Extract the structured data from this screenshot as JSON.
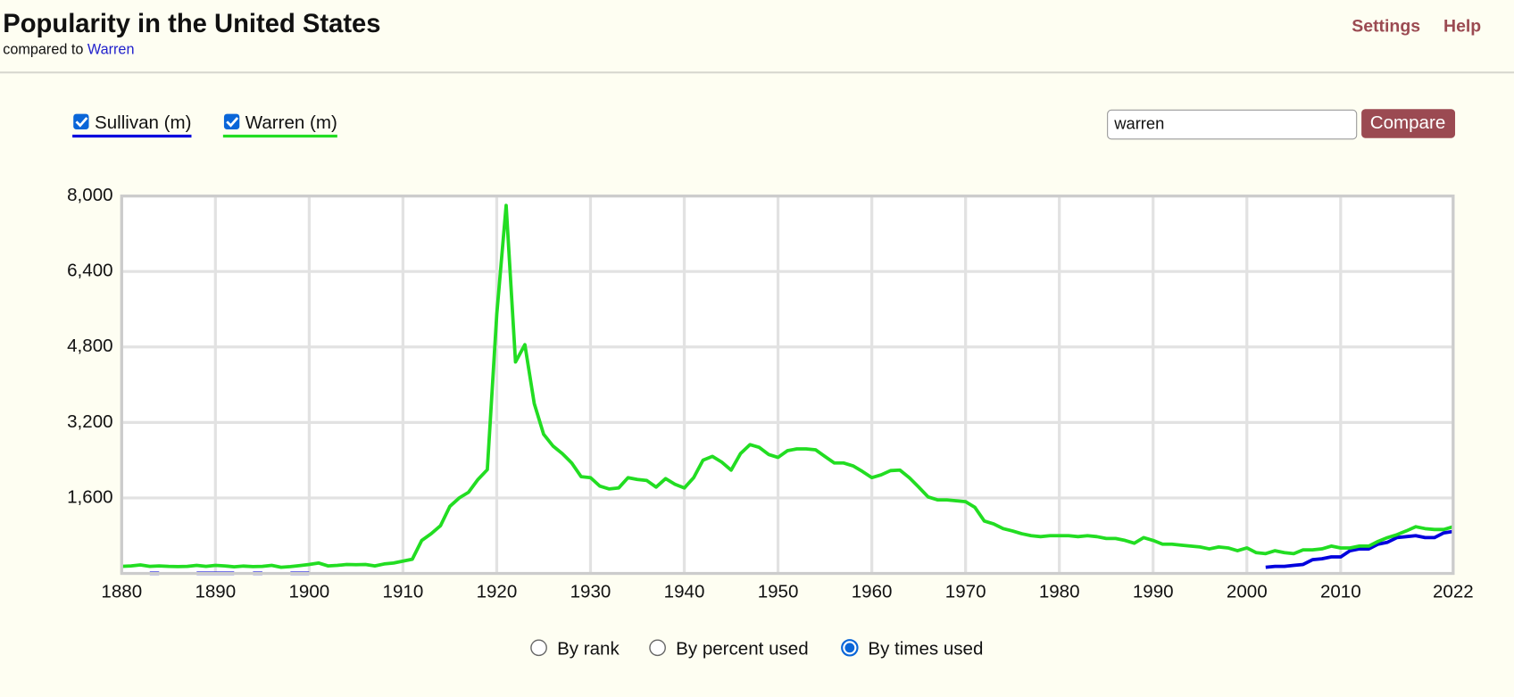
{
  "header": {
    "title": "Popularity in the United States",
    "subtitle_prefix": "compared to",
    "subtitle_link": "Warren",
    "nav": [
      "Settings",
      "Help"
    ]
  },
  "search": {
    "value": "warren",
    "button": "Compare"
  },
  "view_options": {
    "labels": [
      "By rank",
      "By percent used",
      "By times used"
    ],
    "selected": 2
  },
  "chart_data": {
    "type": "line",
    "x": [
      1880,
      1881,
      1882,
      1883,
      1884,
      1885,
      1886,
      1887,
      1888,
      1889,
      1890,
      1891,
      1892,
      1893,
      1894,
      1895,
      1896,
      1897,
      1898,
      1899,
      1900,
      1901,
      1902,
      1903,
      1904,
      1905,
      1906,
      1907,
      1908,
      1909,
      1910,
      1911,
      1912,
      1913,
      1914,
      1915,
      1916,
      1917,
      1918,
      1919,
      1920,
      1921,
      1922,
      1923,
      1924,
      1925,
      1926,
      1927,
      1928,
      1929,
      1930,
      1931,
      1932,
      1933,
      1934,
      1935,
      1936,
      1937,
      1938,
      1939,
      1940,
      1941,
      1942,
      1943,
      1944,
      1945,
      1946,
      1947,
      1948,
      1949,
      1950,
      1951,
      1952,
      1953,
      1954,
      1955,
      1956,
      1957,
      1958,
      1959,
      1960,
      1961,
      1962,
      1963,
      1964,
      1965,
      1966,
      1967,
      1968,
      1969,
      1970,
      1971,
      1972,
      1973,
      1974,
      1975,
      1976,
      1977,
      1978,
      1979,
      1980,
      1981,
      1982,
      1983,
      1984,
      1985,
      1986,
      1987,
      1988,
      1989,
      1990,
      1991,
      1992,
      1993,
      1994,
      1995,
      1996,
      1997,
      1998,
      1999,
      2000,
      2001,
      2002,
      2003,
      2004,
      2005,
      2006,
      2007,
      2008,
      2009,
      2010,
      2011,
      2012,
      2013,
      2014,
      2015,
      2016,
      2017,
      2018,
      2019,
      2020,
      2021,
      2022
    ],
    "series": [
      {
        "name": "Sullivan (m)",
        "color": "#0000dd",
        "values": [
          null,
          null,
          null,
          5,
          5,
          null,
          null,
          null,
          5,
          5,
          5,
          5,
          5,
          null,
          5,
          5,
          null,
          null,
          5,
          5,
          5,
          null,
          null,
          null,
          null,
          null,
          null,
          null,
          null,
          null,
          null,
          null,
          null,
          null,
          null,
          null,
          null,
          null,
          null,
          null,
          null,
          null,
          null,
          null,
          null,
          null,
          null,
          null,
          null,
          null,
          null,
          null,
          null,
          null,
          null,
          null,
          null,
          null,
          null,
          null,
          null,
          null,
          null,
          null,
          null,
          null,
          null,
          null,
          null,
          null,
          null,
          null,
          null,
          null,
          null,
          null,
          null,
          null,
          null,
          null,
          null,
          null,
          null,
          null,
          null,
          null,
          null,
          null,
          null,
          null,
          null,
          null,
          null,
          null,
          null,
          null,
          null,
          null,
          null,
          null,
          null,
          null,
          null,
          null,
          null,
          null,
          null,
          null,
          null,
          null,
          null,
          null,
          null,
          null,
          null,
          null,
          null,
          null,
          null,
          null,
          null,
          null,
          130,
          150,
          150,
          170,
          190,
          290,
          310,
          350,
          350,
          480,
          520,
          520,
          620,
          660,
          760,
          780,
          800,
          760,
          760,
          860,
          890
        ]
      },
      {
        "name": "Warren (m)",
        "color": "#22dd22",
        "values": [
          150,
          160,
          180,
          150,
          160,
          150,
          145,
          150,
          170,
          150,
          170,
          160,
          140,
          155,
          145,
          150,
          170,
          130,
          145,
          165,
          190,
          220,
          160,
          170,
          190,
          185,
          190,
          160,
          200,
          220,
          260,
          300,
          700,
          840,
          1010,
          1420,
          1600,
          1720,
          1990,
          2200,
          5500,
          7800,
          4480,
          4850,
          3600,
          2950,
          2700,
          2540,
          2340,
          2050,
          2030,
          1850,
          1790,
          1810,
          2030,
          1990,
          1970,
          1830,
          2010,
          1890,
          1810,
          2030,
          2400,
          2480,
          2360,
          2190,
          2540,
          2730,
          2670,
          2520,
          2460,
          2600,
          2640,
          2640,
          2620,
          2480,
          2340,
          2340,
          2280,
          2160,
          2030,
          2090,
          2180,
          2190,
          2030,
          1830,
          1620,
          1560,
          1560,
          1540,
          1520,
          1400,
          1110,
          1050,
          950,
          900,
          840,
          800,
          780,
          800,
          800,
          800,
          780,
          800,
          780,
          740,
          740,
          700,
          640,
          760,
          700,
          620,
          620,
          600,
          580,
          560,
          520,
          560,
          540,
          480,
          540,
          440,
          420,
          480,
          440,
          420,
          500,
          500,
          520,
          580,
          540,
          540,
          580,
          580,
          680,
          760,
          820,
          900,
          990,
          950,
          930,
          930,
          990
        ]
      }
    ],
    "xlim": [
      1880,
      2022
    ],
    "xticks": [
      1880,
      1890,
      1900,
      1910,
      1920,
      1930,
      1940,
      1950,
      1960,
      1970,
      1980,
      1990,
      2000,
      2010,
      2022
    ],
    "ylim": [
      0,
      8000
    ],
    "yticks": [
      {
        "value": 1600,
        "label": "1,600"
      },
      {
        "value": 3200,
        "label": "3,200"
      },
      {
        "value": 4800,
        "label": "4,800"
      },
      {
        "value": 6400,
        "label": "6,400"
      },
      {
        "value": 8000,
        "label": "8,000"
      }
    ],
    "grid": true
  }
}
